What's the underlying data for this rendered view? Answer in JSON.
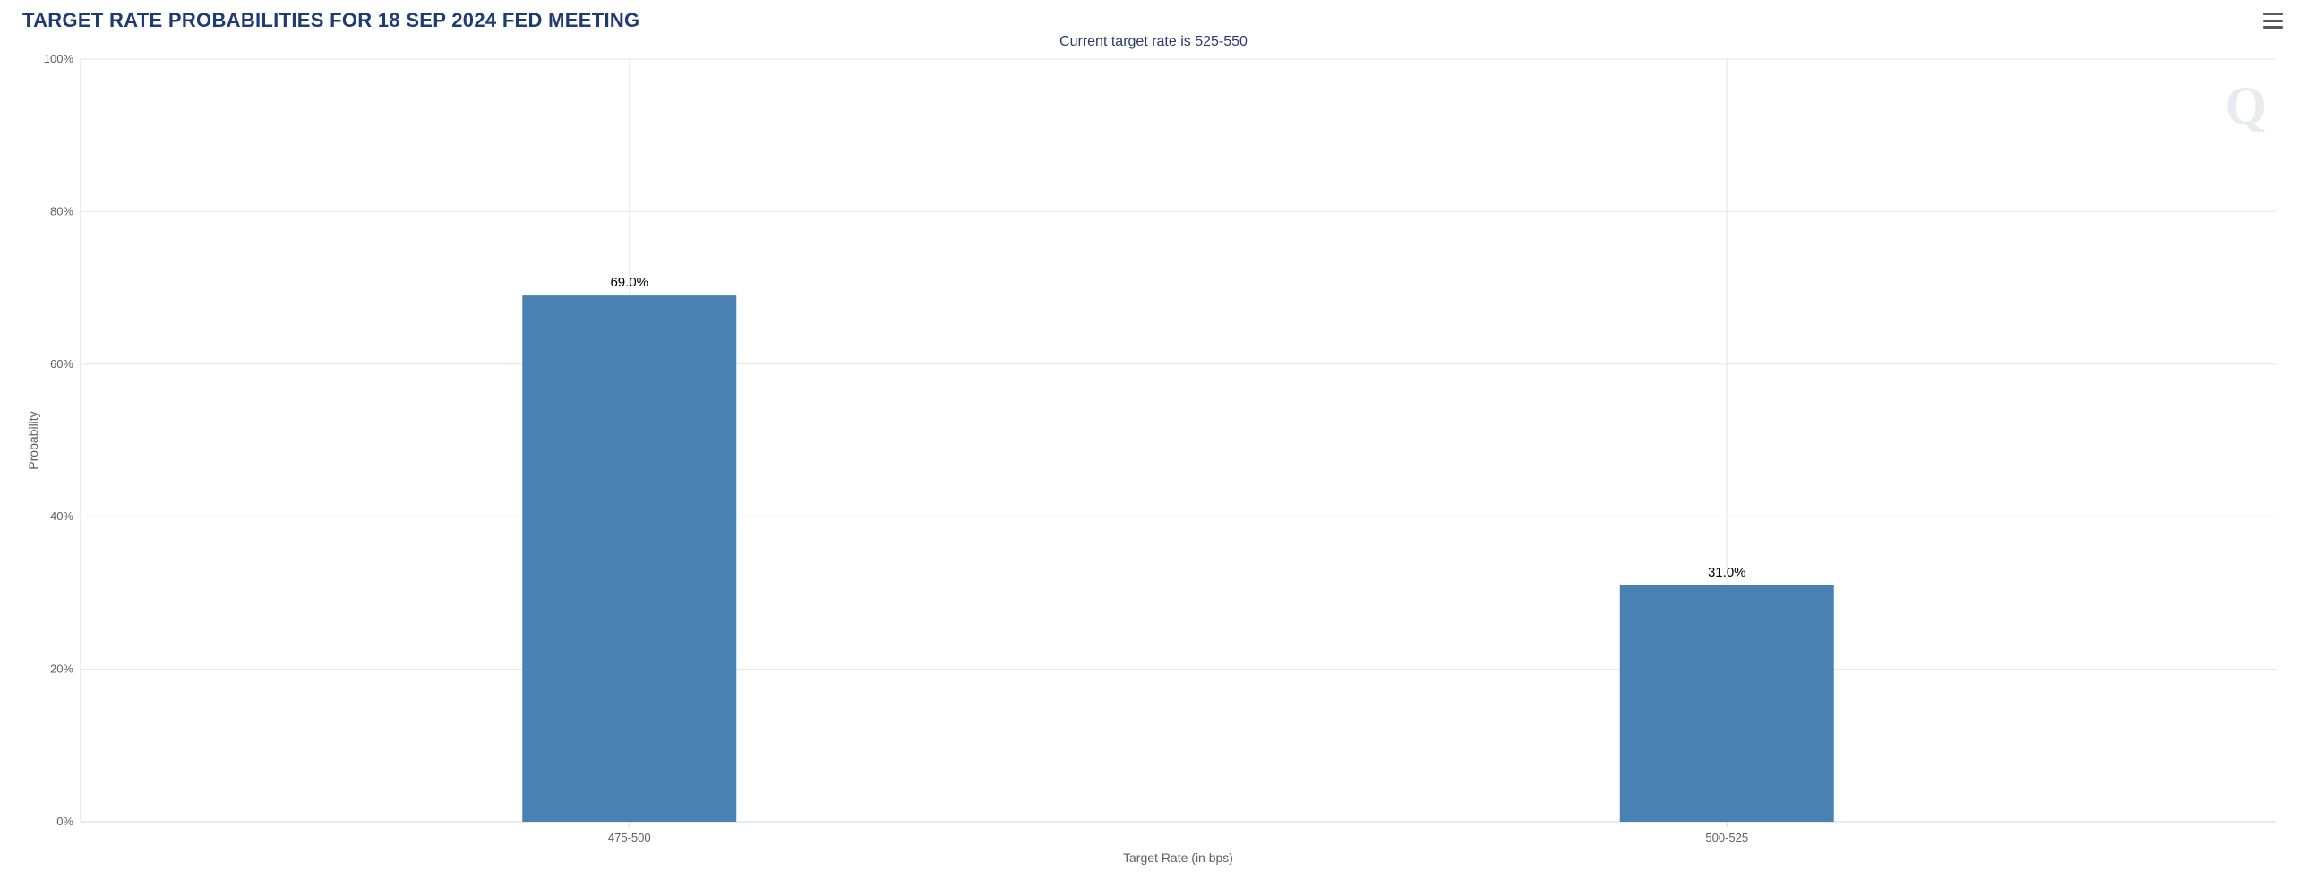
{
  "chart": {
    "type": "bar",
    "title": "TARGET RATE PROBABILITIES FOR 18 SEP 2024 FED MEETING",
    "title_color": "#1f3b73",
    "title_fontsize": 22,
    "subtitle": "Current target rate is 525-550",
    "subtitle_color": "#293c6b",
    "subtitle_fontsize": 16,
    "x_label": "Target Rate (in bps)",
    "y_label": "Probability",
    "axis_label_color": "#5f5f5f",
    "axis_label_fontsize": 14,
    "tick_label_color": "#5f5f5f",
    "tick_fontsize": 13,
    "categories": [
      "475-500",
      "500-525"
    ],
    "values": [
      69.0,
      31.0
    ],
    "value_labels": [
      "69.0%",
      "31.0%"
    ],
    "bar_color": "#4981b3",
    "bar_width_ratio": 0.195,
    "data_label_color": "#000000",
    "data_label_fontsize": 15,
    "ylim": [
      0,
      100
    ],
    "ytick_step": 20,
    "ytick_labels": [
      "0%",
      "20%",
      "40%",
      "60%",
      "80%",
      "100%"
    ],
    "grid_color": "#e6e6e6",
    "axis_line_color": "#cfd8dc",
    "background_color": "#ffffff",
    "plot_background_color": "#ffffff",
    "menu_icon_color": "#5a5a5a",
    "watermark_text": "Q",
    "watermark_color": "#d7dde3",
    "watermark_opacity": 0.55
  }
}
